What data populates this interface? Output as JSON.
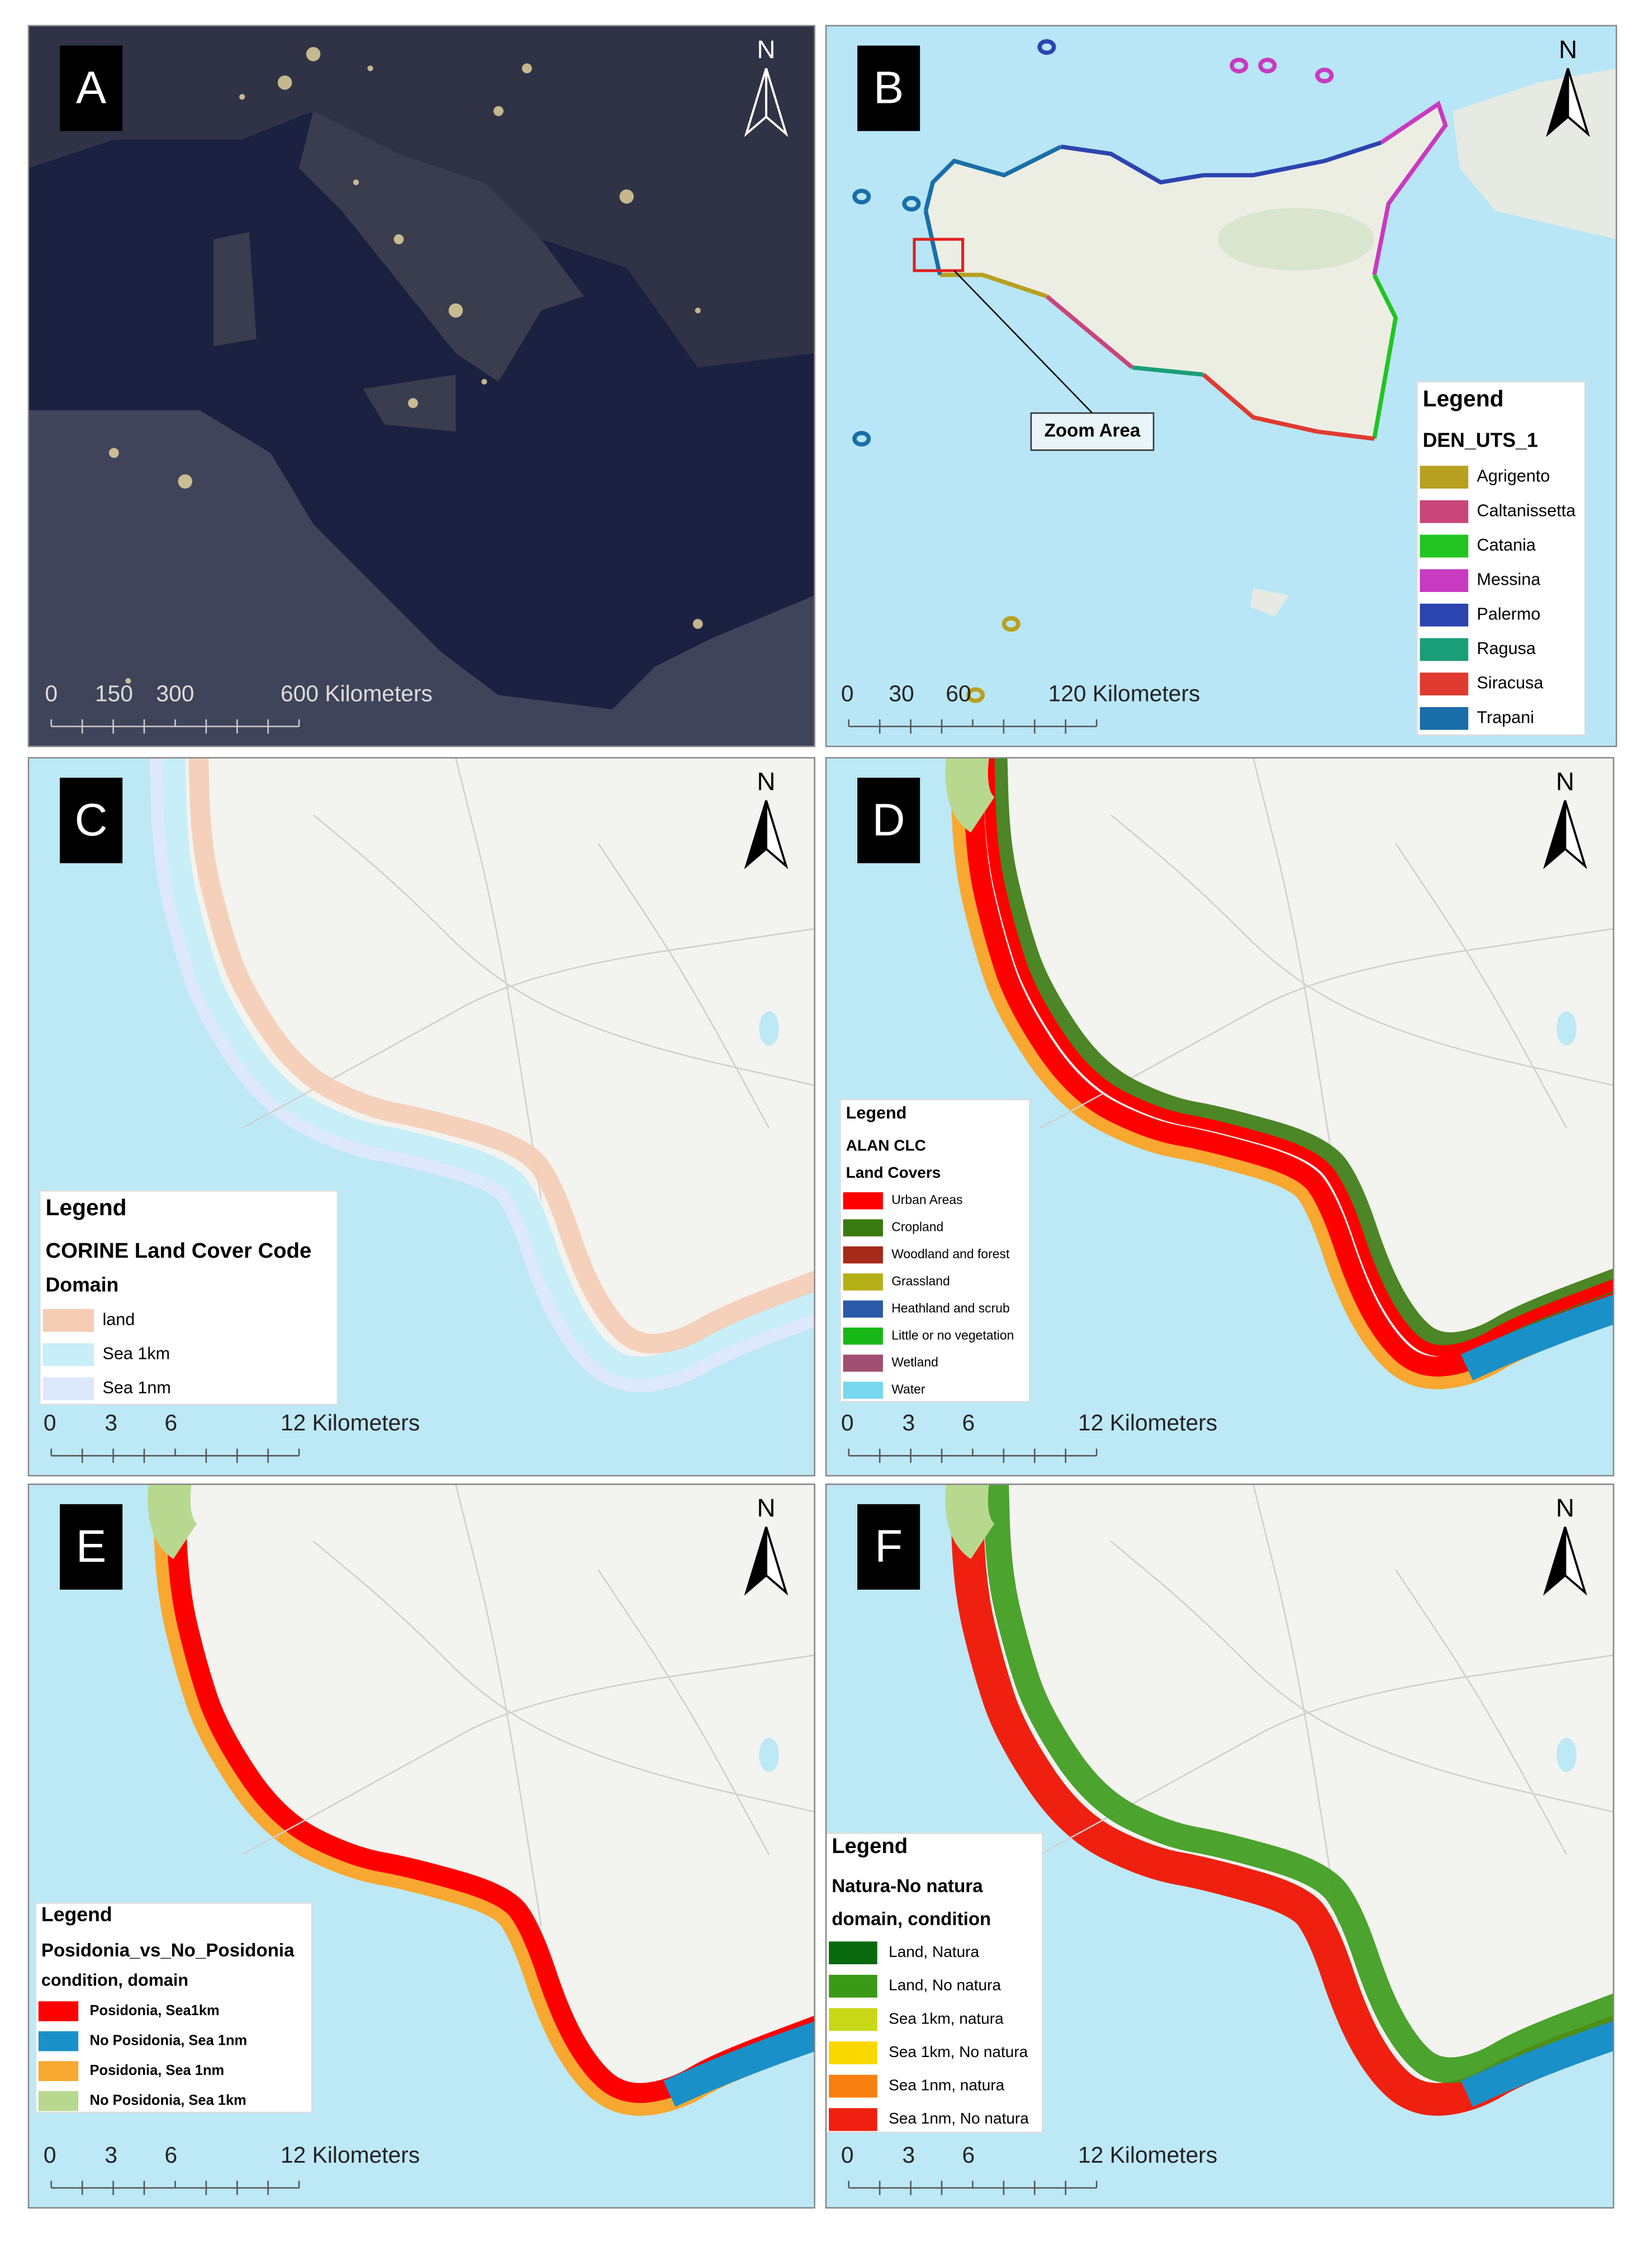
{
  "panels": [
    {
      "label": "A",
      "north": "N",
      "scale_labels": [
        "0",
        "150",
        "300",
        "600 Kilometers"
      ]
    },
    {
      "label": "B",
      "north": "N",
      "scale_labels": [
        "0",
        "30",
        "60",
        "120 Kilometers"
      ],
      "annotation": "Zoom Area",
      "legend": {
        "lines": [
          "Legend",
          "DEN_UTS_1"
        ],
        "items": [
          {
            "label": "Agrigento",
            "color": "#b8a020"
          },
          {
            "label": "Caltanissetta",
            "color": "#c9457a"
          },
          {
            "label": "Catania",
            "color": "#22c422"
          },
          {
            "label": "Messina",
            "color": "#c83ac0"
          },
          {
            "label": "Palermo",
            "color": "#2c44b0"
          },
          {
            "label": "Ragusa",
            "color": "#1a9e78"
          },
          {
            "label": "Siracusa",
            "color": "#e03a30"
          },
          {
            "label": "Trapani",
            "color": "#1a6ea8"
          }
        ]
      }
    },
    {
      "label": "C",
      "north": "N",
      "scale_labels": [
        "0",
        "3",
        "6",
        "12 Kilometers"
      ],
      "legend": {
        "lines": [
          "Legend",
          "CORINE Land Cover Code",
          "Domain"
        ],
        "items": [
          {
            "label": "land",
            "color": "#f5cdb5"
          },
          {
            "label": "Sea 1km",
            "color": "#c8eef8"
          },
          {
            "label": "Sea 1nm",
            "color": "#dde8fb"
          }
        ]
      }
    },
    {
      "label": "D",
      "north": "N",
      "scale_labels": [
        "0",
        "3",
        "6",
        "12 Kilometers"
      ],
      "legend": {
        "lines": [
          "Legend",
          "ALAN CLC",
          "Land Covers"
        ],
        "items": [
          {
            "label": "Urban Areas",
            "color": "#ff0000"
          },
          {
            "label": "Cropland",
            "color": "#3a7a10"
          },
          {
            "label": "Woodland and forest",
            "color": "#a52a1a"
          },
          {
            "label": "Grassland",
            "color": "#b5b018"
          },
          {
            "label": "Heathland and scrub",
            "color": "#2a5aa8"
          },
          {
            "label": "Little or no vegetation",
            "color": "#18b818"
          },
          {
            "label": "Wetland",
            "color": "#a05070"
          },
          {
            "label": "Water",
            "color": "#78d8ee"
          }
        ]
      }
    },
    {
      "label": "E",
      "north": "N",
      "scale_labels": [
        "0",
        "3",
        "6",
        "12 Kilometers"
      ],
      "legend": {
        "lines": [
          "Legend",
          "Posidonia_vs_No_Posidonia",
          "condition, domain"
        ],
        "items": [
          {
            "label": "Posidonia, Sea1km",
            "color": "#ff0000"
          },
          {
            "label": "No Posidonia, Sea 1nm",
            "color": "#1a90c8"
          },
          {
            "label": "Posidonia, Sea 1nm",
            "color": "#f8a830"
          },
          {
            "label": "No Posidonia, Sea 1km",
            "color": "#b8d890"
          }
        ]
      }
    },
    {
      "label": "F",
      "north": "N",
      "scale_labels": [
        "0",
        "3",
        "6",
        "12 Kilometers"
      ],
      "legend": {
        "lines": [
          "Legend",
          "Natura-No natura",
          "domain,  condition"
        ],
        "items": [
          {
            "label": "Land, Natura",
            "color": "#0a6a10"
          },
          {
            "label": "Land, No natura",
            "color": "#3a9a18"
          },
          {
            "label": "Sea 1km, natura",
            "color": "#c8d818"
          },
          {
            "label": "Sea 1km, No natura",
            "color": "#f8d800"
          },
          {
            "label": "Sea 1nm, natura",
            "color": "#f88010"
          },
          {
            "label": "Sea 1nm, No natura",
            "color": "#f02010"
          }
        ]
      }
    }
  ]
}
